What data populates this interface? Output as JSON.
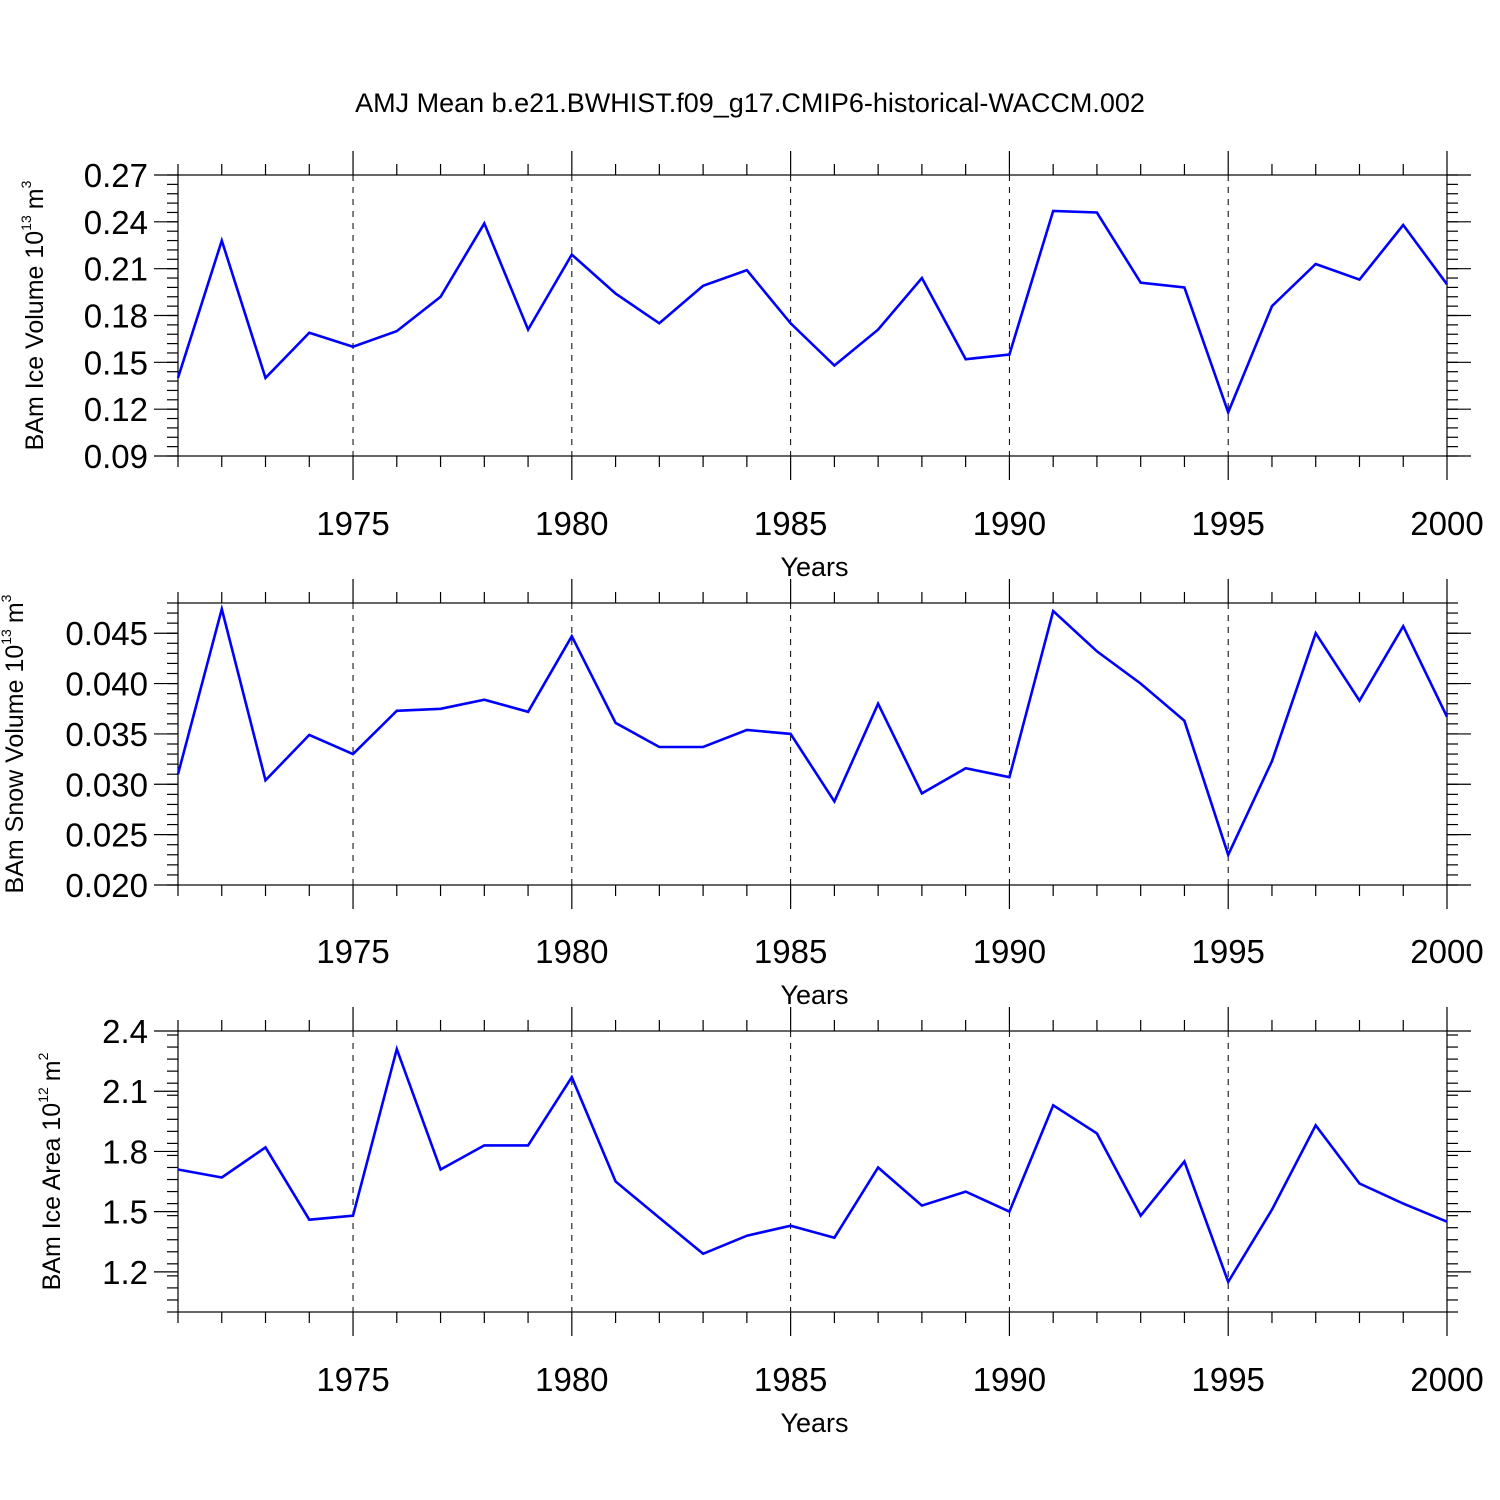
{
  "title": "AMJ Mean b.e21.BWHIST.f09_g17.CMIP6-historical-WACCM.002",
  "chart_data": [
    {
      "type": "line",
      "title": "",
      "xlabel": "Years",
      "ylabel": {
        "main": "BAm Ice Volume 10",
        "exp": "13",
        "unit": "m",
        "unit_exp": "3"
      },
      "xlim": [
        1971,
        2000
      ],
      "ylim": [
        0.09,
        0.27
      ],
      "x_ticks": [
        1975,
        1980,
        1985,
        1990,
        1995,
        2000
      ],
      "y_ticks": [
        0.09,
        0.12,
        0.15,
        0.18,
        0.21,
        0.24,
        0.27
      ],
      "y_tick_labels": [
        "0.09",
        "0.12",
        "0.15",
        "0.18",
        "0.21",
        "0.24",
        "0.27"
      ],
      "y_minor_step": 0.006,
      "x": [
        1971,
        1972,
        1973,
        1974,
        1975,
        1976,
        1977,
        1978,
        1979,
        1980,
        1981,
        1982,
        1983,
        1984,
        1985,
        1986,
        1987,
        1988,
        1989,
        1990,
        1991,
        1992,
        1993,
        1994,
        1995,
        1996,
        1997,
        1998,
        1999,
        2000
      ],
      "series": [
        {
          "name": "BAm Ice Volume",
          "color": "#0000ff",
          "values": [
            0.14,
            0.228,
            0.14,
            0.169,
            0.16,
            0.17,
            0.192,
            0.239,
            0.171,
            0.219,
            0.194,
            0.175,
            0.199,
            0.209,
            0.175,
            0.148,
            0.171,
            0.204,
            0.152,
            0.155,
            0.247,
            0.246,
            0.201,
            0.198,
            0.118,
            0.186,
            0.213,
            0.203,
            0.238,
            0.2
          ]
        }
      ]
    },
    {
      "type": "line",
      "title": "",
      "xlabel": "Years",
      "ylabel": {
        "main": "BAm Snow Volume 10",
        "exp": "13",
        "unit": "m",
        "unit_exp": "3"
      },
      "xlim": [
        1971,
        2000
      ],
      "ylim": [
        0.02,
        0.048
      ],
      "x_ticks": [
        1975,
        1980,
        1985,
        1990,
        1995,
        2000
      ],
      "y_ticks": [
        0.02,
        0.025,
        0.03,
        0.035,
        0.04,
        0.045
      ],
      "y_tick_labels": [
        "0.020",
        "0.025",
        "0.030",
        "0.035",
        "0.040",
        "0.045"
      ],
      "y_minor_step": 0.001,
      "x": [
        1971,
        1972,
        1973,
        1974,
        1975,
        1976,
        1977,
        1978,
        1979,
        1980,
        1981,
        1982,
        1983,
        1984,
        1985,
        1986,
        1987,
        1988,
        1989,
        1990,
        1991,
        1992,
        1993,
        1994,
        1995,
        1996,
        1997,
        1998,
        1999,
        2000
      ],
      "series": [
        {
          "name": "BAm Snow Volume",
          "color": "#0000ff",
          "values": [
            0.031,
            0.0474,
            0.0304,
            0.0349,
            0.033,
            0.0373,
            0.0375,
            0.0384,
            0.0372,
            0.0447,
            0.0361,
            0.0337,
            0.0337,
            0.0354,
            0.035,
            0.0283,
            0.038,
            0.0291,
            0.0316,
            0.0307,
            0.0472,
            0.0432,
            0.04,
            0.0363,
            0.023,
            0.0323,
            0.045,
            0.0383,
            0.0457,
            0.0367
          ]
        }
      ]
    },
    {
      "type": "line",
      "title": "",
      "xlabel": "Years",
      "ylabel": {
        "main": "BAm Ice Area 10",
        "exp": "12",
        "unit": "m",
        "unit_exp": "2"
      },
      "xlim": [
        1971,
        2000
      ],
      "ylim": [
        1.0,
        2.4
      ],
      "x_ticks": [
        1975,
        1980,
        1985,
        1990,
        1995,
        2000
      ],
      "y_ticks": [
        1.2,
        1.5,
        1.8,
        2.1,
        2.4
      ],
      "y_tick_labels": [
        "1.2",
        "1.5",
        "1.8",
        "2.1",
        "2.4"
      ],
      "y_minor_step": 0.06,
      "x": [
        1971,
        1972,
        1973,
        1974,
        1975,
        1976,
        1977,
        1978,
        1979,
        1980,
        1981,
        1982,
        1983,
        1984,
        1985,
        1986,
        1987,
        1988,
        1989,
        1990,
        1991,
        1992,
        1993,
        1994,
        1995,
        1996,
        1997,
        1998,
        1999,
        2000
      ],
      "series": [
        {
          "name": "BAm Ice Area",
          "color": "#0000ff",
          "values": [
            1.71,
            1.67,
            1.82,
            1.46,
            1.48,
            2.31,
            1.71,
            1.83,
            1.83,
            2.17,
            1.65,
            1.47,
            1.29,
            1.38,
            1.43,
            1.37,
            1.72,
            1.53,
            1.6,
            1.5,
            2.03,
            1.89,
            1.48,
            1.75,
            1.15,
            1.51,
            1.93,
            1.64,
            1.54,
            1.45
          ]
        }
      ]
    }
  ]
}
